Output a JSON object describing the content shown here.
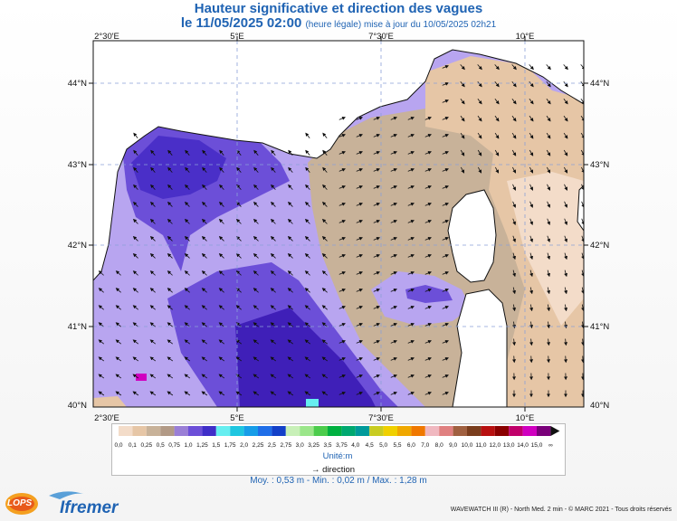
{
  "header": {
    "title": "Hauteur significative et direction des vagues",
    "date": "le 11/05/2025 02:00",
    "update_note": "(heure légale) mise à jour du 10/05/2025 02h21"
  },
  "map": {
    "top_longitude_labels": [
      "2°30'E",
      "5°E",
      "7°30'E",
      "10°E"
    ],
    "bottom_longitude_labels": [
      "2°30'E",
      "5°E",
      "7°30'E",
      "10°E"
    ],
    "left_latitude_labels": [
      "44°N",
      "43°N",
      "42°N",
      "41°N",
      "40°N"
    ],
    "right_latitude_labels": [
      "44°N",
      "43°N",
      "42°N",
      "41°N",
      "40°N"
    ],
    "lon_range": [
      2.3,
      10.9
    ],
    "lat_range": [
      40.0,
      44.4
    ],
    "grid": true,
    "colors": {
      "land": "#ffffff",
      "low_wave": "#e6c6a6",
      "mid_wave": "#b8a5f0",
      "high_wave": "#5a3ad0",
      "max_wave": "#3f1fb8"
    }
  },
  "legend": {
    "labels": [
      "0,0",
      "0,1",
      "0,25",
      "0,5",
      "0,75",
      "1,0",
      "1,25",
      "1,5",
      "1,75",
      "2,0",
      "2,25",
      "2,5",
      "2,75",
      "3,0",
      "3,25",
      "3,5",
      "3,75",
      "4,0",
      "4,5",
      "5,0",
      "5,5",
      "6,0",
      "7,0",
      "8,0",
      "9,0",
      "10,0",
      "11,0",
      "12,0",
      "13,0",
      "14,0",
      "15,0",
      "∞"
    ],
    "colors": [
      "#f3dcc9",
      "#e6c6a6",
      "#c8b299",
      "#b29a86",
      "#9a7fd6",
      "#6c4fd8",
      "#3f2ec8",
      "#66eef0",
      "#1fc6e0",
      "#179de8",
      "#1f6ee8",
      "#1340c8",
      "#c8f0b8",
      "#9be68a",
      "#4ccc4c",
      "#00b040",
      "#00a870",
      "#009a9a",
      "#c8cc22",
      "#f0d000",
      "#f0a800",
      "#f07800",
      "#f0b8c0",
      "#e08080",
      "#a06040",
      "#7a3d1d",
      "#b81010",
      "#8a0000",
      "#c0006a",
      "#d000c0",
      "#7a007a"
    ],
    "unit": "Unité:m",
    "direction_label": "direction"
  },
  "stats": {
    "text": "Moy. : 0,53 m   -   Min. : 0,02 m / Max. : 1,28 m"
  },
  "footer": {
    "credit": "WAVEWATCH III (R) - North Med. 2 min - © MARC 2021 - Tous droits réservés",
    "logo_left": "LOPS",
    "logo_right": "Ifremer"
  }
}
